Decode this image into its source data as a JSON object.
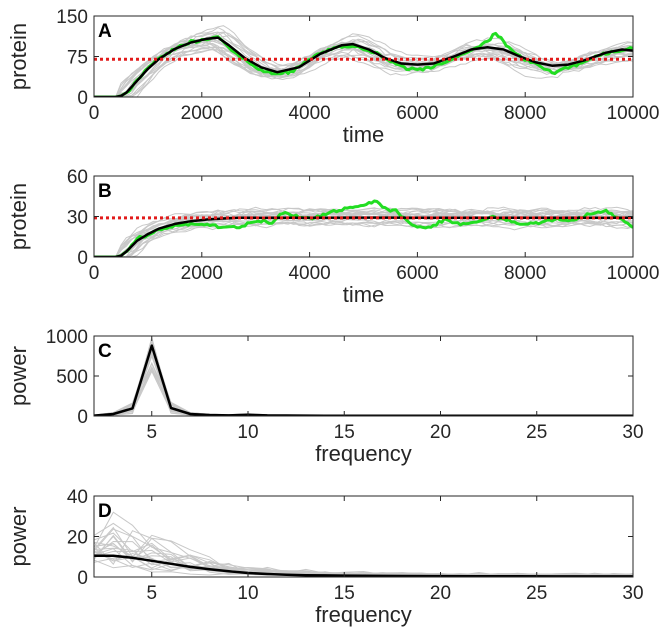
{
  "chart_data": [
    {
      "panel": "A",
      "type": "line",
      "xlabel": "time",
      "ylabel": "protein",
      "xlim": [
        0,
        10000
      ],
      "ylim": [
        0,
        150
      ],
      "xticks": [
        0,
        2000,
        4000,
        6000,
        8000,
        10000
      ],
      "yticks": [
        0,
        75,
        150
      ],
      "reference_line": {
        "y": 70,
        "color": "#e21b1b",
        "style": "dotted"
      },
      "gray_traces": 20,
      "colors": {
        "gray": "#c8c8c8",
        "highlight": "#22dd22",
        "mean": "#000000"
      },
      "series": [
        {
          "role": "mean",
          "x": [
            0,
            200,
            400,
            500,
            600,
            800,
            1000,
            1200,
            1500,
            1800,
            2100,
            2300,
            2500,
            2800,
            3100,
            3400,
            3800,
            4200,
            4600,
            4800,
            5100,
            5400,
            5700,
            6000,
            6300,
            6700,
            7000,
            7300,
            7600,
            7900,
            8200,
            8500,
            8800,
            9100,
            9500,
            9800,
            10000
          ],
          "y": [
            0,
            0,
            0,
            2,
            8,
            30,
            52,
            70,
            89,
            101,
            108,
            110,
            96,
            72,
            55,
            46,
            55,
            80,
            96,
            98,
            88,
            72,
            62,
            60,
            62,
            76,
            88,
            92,
            88,
            75,
            64,
            58,
            60,
            68,
            82,
            88,
            86
          ]
        },
        {
          "role": "highlight",
          "x": [
            0,
            400,
            500,
            600,
            800,
            1000,
            1200,
            1500,
            1800,
            2100,
            2300,
            2500,
            2800,
            3100,
            3400,
            3700,
            4000,
            4300,
            4600,
            4900,
            5200,
            5500,
            5800,
            6100,
            6400,
            6700,
            7000,
            7300,
            7450,
            7700,
            8000,
            8300,
            8500,
            8800,
            9100,
            9400,
            9700,
            10000
          ],
          "y": [
            0,
            0,
            2,
            8,
            30,
            55,
            70,
            90,
            102,
            106,
            112,
            92,
            68,
            50,
            42,
            48,
            70,
            86,
            94,
            92,
            82,
            66,
            52,
            52,
            60,
            72,
            86,
            104,
            118,
            90,
            70,
            56,
            44,
            55,
            65,
            78,
            86,
            90
          ]
        }
      ]
    },
    {
      "panel": "B",
      "type": "line",
      "xlabel": "time",
      "ylabel": "protein",
      "xlim": [
        0,
        10000
      ],
      "ylim": [
        0,
        60
      ],
      "xticks": [
        0,
        2000,
        4000,
        6000,
        8000,
        10000
      ],
      "yticks": [
        0,
        30,
        60
      ],
      "reference_line": {
        "y": 29,
        "color": "#e21b1b",
        "style": "dotted"
      },
      "gray_traces": 20,
      "colors": {
        "gray": "#c8c8c8",
        "highlight": "#22dd22",
        "mean": "#000000"
      },
      "series": [
        {
          "role": "mean",
          "x": [
            0,
            200,
            400,
            500,
            600,
            800,
            1000,
            1200,
            1500,
            1800,
            2100,
            2400,
            2700,
            3000,
            3500,
            4000,
            5000,
            6000,
            7000,
            8000,
            9000,
            10000
          ],
          "y": [
            0,
            0,
            0,
            1,
            4,
            12,
            17,
            21,
            24.5,
            26.5,
            27.8,
            28.5,
            29,
            29,
            29,
            29,
            29.2,
            29,
            29,
            29,
            29,
            29
          ]
        },
        {
          "role": "highlight",
          "x": [
            0,
            400,
            500,
            600,
            800,
            1000,
            1200,
            1500,
            1800,
            2100,
            2400,
            2700,
            3000,
            3300,
            3500,
            3800,
            4100,
            4400,
            4700,
            5000,
            5200,
            5400,
            5600,
            5900,
            6200,
            6500,
            6800,
            7100,
            7400,
            7700,
            8000,
            8300,
            8600,
            8900,
            9200,
            9500,
            9800,
            10000
          ],
          "y": [
            0,
            0,
            1,
            4,
            14,
            16,
            20,
            23,
            25,
            24,
            22,
            22,
            27,
            25,
            33,
            30,
            29,
            33,
            36,
            38,
            42,
            36,
            34,
            23,
            22,
            28,
            24,
            26,
            30,
            27,
            24,
            26,
            28,
            27,
            32,
            34,
            28,
            22
          ]
        }
      ]
    },
    {
      "panel": "C",
      "type": "line",
      "xlabel": "frequency",
      "ylabel": "power",
      "xlim": [
        2,
        30
      ],
      "ylim": [
        0,
        1000
      ],
      "xticks": [
        5,
        10,
        15,
        20,
        25,
        30
      ],
      "yticks": [
        0,
        500,
        1000
      ],
      "gray_traces": 20,
      "colors": {
        "gray": "#c8c8c8",
        "mean": "#000000"
      },
      "series": [
        {
          "role": "mean",
          "x": [
            2,
            3,
            4,
            5,
            6,
            7,
            8,
            9,
            10,
            11,
            12,
            14,
            16,
            18,
            20,
            22,
            24,
            26,
            28,
            30
          ],
          "y": [
            5,
            25,
            95,
            880,
            100,
            25,
            12,
            8,
            15,
            7,
            6,
            4,
            3,
            3,
            2,
            2,
            2,
            2,
            2,
            2
          ]
        }
      ]
    },
    {
      "panel": "D",
      "type": "line",
      "xlabel": "frequency",
      "ylabel": "power",
      "xlim": [
        2,
        30
      ],
      "ylim": [
        0,
        40
      ],
      "xticks": [
        5,
        10,
        15,
        20,
        25,
        30
      ],
      "yticks": [
        0,
        20,
        40
      ],
      "gray_traces": 20,
      "colors": {
        "gray": "#c8c8c8",
        "mean": "#000000"
      },
      "series": [
        {
          "role": "mean",
          "x": [
            2,
            3,
            4,
            5,
            6,
            7,
            8,
            9,
            10,
            11,
            12,
            13,
            14,
            15,
            16,
            18,
            20,
            22,
            24,
            26,
            28,
            30
          ],
          "y": [
            10.5,
            10.5,
            9.5,
            8,
            6.5,
            5,
            3.8,
            2.8,
            2,
            1.5,
            1.1,
            0.9,
            0.8,
            0.7,
            0.6,
            0.5,
            0.45,
            0.4,
            0.35,
            0.3,
            0.3,
            0.3
          ]
        }
      ]
    }
  ]
}
